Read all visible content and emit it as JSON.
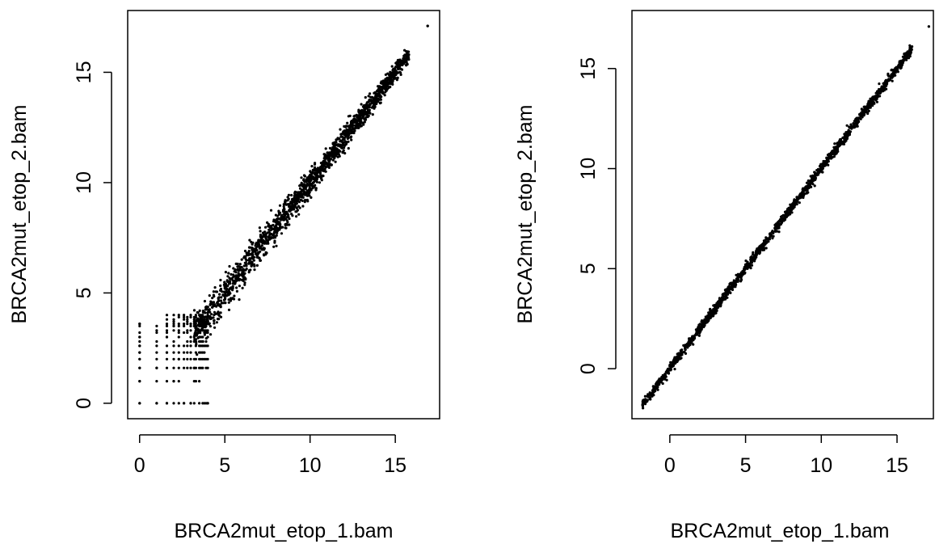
{
  "chart_data": [
    {
      "type": "scatter",
      "title": "",
      "xlabel": "BRCA2mut_etop_1.bam",
      "ylabel": "BRCA2mut_etop_2.bam",
      "xlim": [
        -0.7,
        17.6
      ],
      "ylim": [
        -0.7,
        17.8
      ],
      "x_ticks": [
        0,
        5,
        10,
        15
      ],
      "y_ticks": [
        0,
        5,
        10,
        15
      ],
      "x_tick_labels": [
        "0",
        "5",
        "10",
        "15"
      ],
      "y_tick_labels": [
        "0",
        "5",
        "10",
        "15"
      ],
      "grid": false,
      "point_color": "#000000",
      "description_of_points": "Raw normalized counts: points cluster along y=x from about 4 to 16.9, with a discrete low-count lattice for x,y between 0 and 4.",
      "points_sample": [
        {
          "x": 0.0,
          "y": 0.0
        },
        {
          "x": 0.0,
          "y": 1.0
        },
        {
          "x": 0.0,
          "y": 1.6
        },
        {
          "x": 0.0,
          "y": 2.0
        },
        {
          "x": 0.0,
          "y": 2.3
        },
        {
          "x": 0.0,
          "y": 2.6
        },
        {
          "x": 0.0,
          "y": 3.0
        },
        {
          "x": 0.0,
          "y": 3.6
        },
        {
          "x": 1.0,
          "y": 0.0
        },
        {
          "x": 1.0,
          "y": 1.6
        },
        {
          "x": 1.0,
          "y": 2.6
        },
        {
          "x": 1.0,
          "y": 3.2
        },
        {
          "x": 1.6,
          "y": 0.0
        },
        {
          "x": 1.6,
          "y": 2.3
        },
        {
          "x": 1.6,
          "y": 3.0
        },
        {
          "x": 2.0,
          "y": 1.0
        },
        {
          "x": 2.0,
          "y": 3.5
        },
        {
          "x": 2.3,
          "y": 2.0
        },
        {
          "x": 2.6,
          "y": 0.0
        },
        {
          "x": 2.6,
          "y": 3.9
        },
        {
          "x": 3.0,
          "y": 0.0
        },
        {
          "x": 3.0,
          "y": 2.6
        },
        {
          "x": 3.2,
          "y": 1.6
        },
        {
          "x": 3.5,
          "y": 3.0
        },
        {
          "x": 4.0,
          "y": 0.0
        },
        {
          "x": 4.0,
          "y": 4.1
        },
        {
          "x": 5.0,
          "y": 5.2
        },
        {
          "x": 6.0,
          "y": 5.8
        },
        {
          "x": 7.0,
          "y": 7.1
        },
        {
          "x": 8.0,
          "y": 8.0
        },
        {
          "x": 9.0,
          "y": 9.2
        },
        {
          "x": 10.0,
          "y": 9.9
        },
        {
          "x": 11.0,
          "y": 11.1
        },
        {
          "x": 12.0,
          "y": 12.0
        },
        {
          "x": 13.0,
          "y": 13.1
        },
        {
          "x": 14.0,
          "y": 14.0
        },
        {
          "x": 15.0,
          "y": 15.1
        },
        {
          "x": 15.8,
          "y": 15.8
        },
        {
          "x": 16.9,
          "y": 17.1
        }
      ]
    },
    {
      "type": "scatter",
      "title": "",
      "xlabel": "BRCA2mut_etop_1.bam",
      "ylabel": "BRCA2mut_etop_2.bam",
      "xlim": [
        -2.5,
        17.4
      ],
      "ylim": [
        -2.5,
        17.9
      ],
      "x_ticks": [
        0,
        5,
        10,
        15
      ],
      "y_ticks": [
        0,
        5,
        10,
        15
      ],
      "x_tick_labels": [
        "0",
        "5",
        "10",
        "15"
      ],
      "y_tick_labels": [
        "0",
        "5",
        "10",
        "15"
      ],
      "grid": false,
      "point_color": "#000000",
      "description_of_points": "Transformed values: tight band along y=x from about -1.8 to 17.1.",
      "points_sample": [
        {
          "x": -1.8,
          "y": -1.8
        },
        {
          "x": -1.0,
          "y": -1.0
        },
        {
          "x": 0.0,
          "y": 0.0
        },
        {
          "x": 1.0,
          "y": 1.0
        },
        {
          "x": 2.0,
          "y": 2.0
        },
        {
          "x": 3.0,
          "y": 3.0
        },
        {
          "x": 4.0,
          "y": 4.0
        },
        {
          "x": 5.0,
          "y": 5.0
        },
        {
          "x": 6.0,
          "y": 6.0
        },
        {
          "x": 7.0,
          "y": 7.0
        },
        {
          "x": 8.0,
          "y": 8.0
        },
        {
          "x": 9.0,
          "y": 9.0
        },
        {
          "x": 10.0,
          "y": 10.0
        },
        {
          "x": 11.0,
          "y": 11.0
        },
        {
          "x": 12.0,
          "y": 12.0
        },
        {
          "x": 13.0,
          "y": 13.0
        },
        {
          "x": 14.0,
          "y": 14.0
        },
        {
          "x": 15.0,
          "y": 15.0
        },
        {
          "x": 15.9,
          "y": 15.9
        },
        {
          "x": 17.1,
          "y": 17.1
        }
      ]
    }
  ]
}
